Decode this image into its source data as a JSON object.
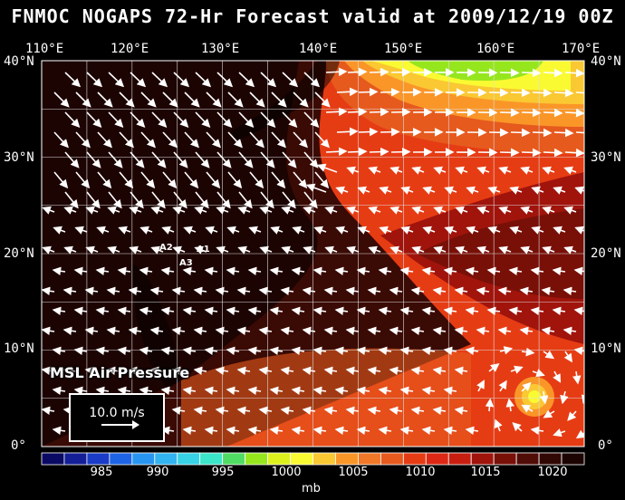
{
  "title": "FNMOC NOGAPS 72-Hr Forecast valid at 2009/12/19 00Z",
  "lon_labels": [
    "110°E",
    "120°E",
    "130°E",
    "140°E",
    "150°E",
    "160°E",
    "170°E"
  ],
  "lat_labels": [
    "40°N",
    "30°N",
    "20°N",
    "10°N",
    "0°"
  ],
  "field_label": "MSL Air Pressure",
  "wind_scale_label": "10.0 m/s",
  "station_labels": [
    "A1",
    "A2",
    "A3"
  ],
  "colorbar": {
    "unit": "mb",
    "tick_labels": [
      "985",
      "990",
      "995",
      "1000",
      "1005",
      "1010",
      "1015",
      "1020"
    ],
    "colors": [
      "#0a0a64",
      "#141e96",
      "#1a3cc8",
      "#1e64e6",
      "#2896f0",
      "#32b4f0",
      "#37d2e6",
      "#3ce6c8",
      "#50dc64",
      "#96e61e",
      "#dcf01e",
      "#fafa32",
      "#fac832",
      "#fa9628",
      "#f07828",
      "#e65a1e",
      "#e63c14",
      "#dc2814",
      "#c81e10",
      "#a0140c",
      "#781008",
      "#500c06",
      "#320804",
      "#1c0402"
    ]
  }
}
